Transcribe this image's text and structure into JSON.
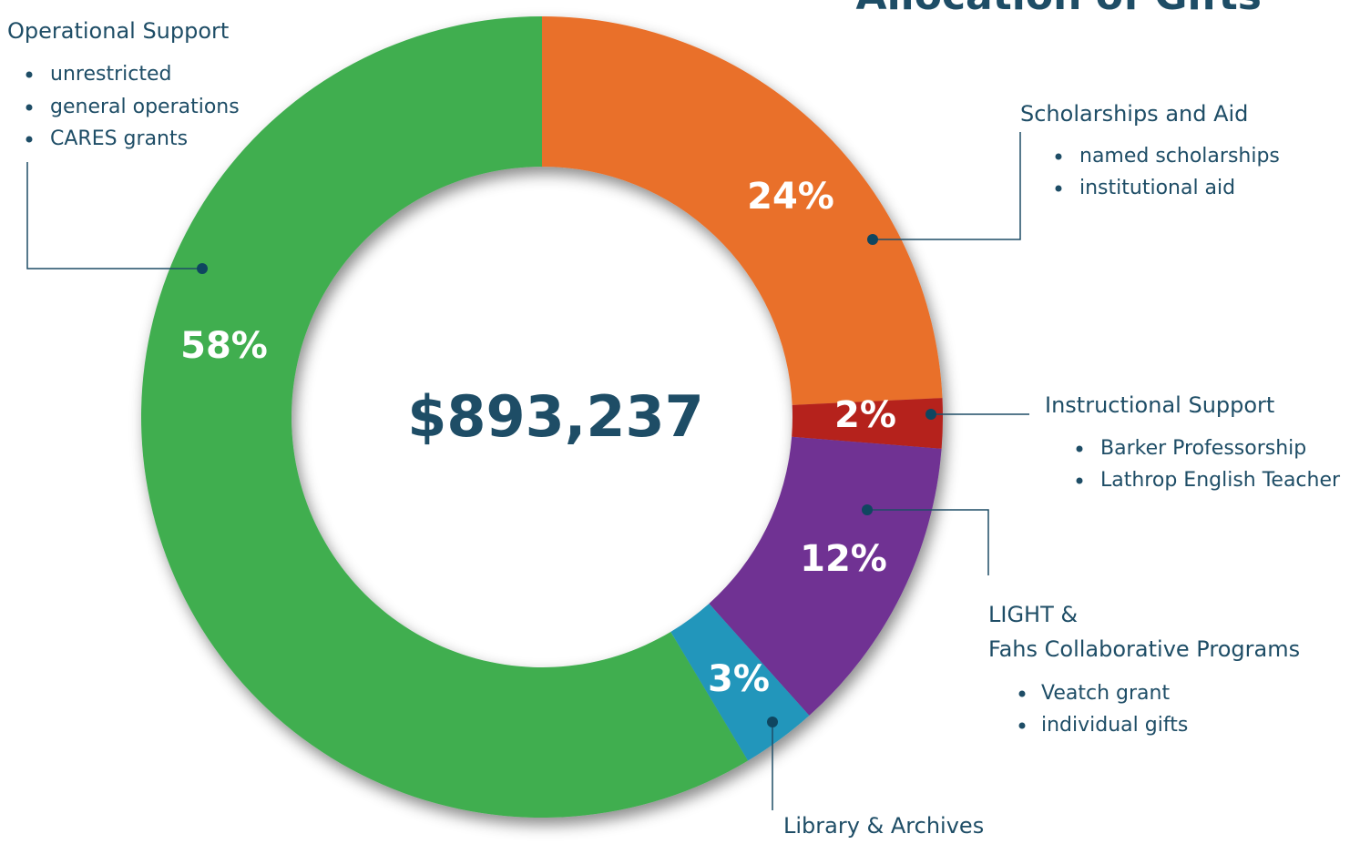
{
  "chart_data": {
    "type": "donut",
    "title": "Allocation of Gifts",
    "total_label": "$893,237",
    "categories": [
      {
        "label_lines": [
          "Scholarships and Aid"
        ],
        "bullets": [
          "named scholarships",
          "institutional aid"
        ]
      },
      {
        "label_lines": [
          "Instructional Support"
        ],
        "bullets": [
          "Barker Professorship",
          "Lathrop English Teacher"
        ]
      },
      {
        "label_lines": [
          "LIGHT &",
          "Fahs Collaborative Programs"
        ],
        "bullets": [
          "Veatch grant",
          "individual gifts"
        ]
      },
      {
        "label_lines": [
          "Library & Archives"
        ],
        "bullets": []
      },
      {
        "label_lines": [
          "Operational Support"
        ],
        "bullets": [
          "unrestricted",
          "general operations",
          "CARES grants"
        ]
      }
    ],
    "values": [
      24,
      2,
      12,
      3,
      58
    ],
    "value_labels": [
      "24%",
      "2%",
      "12%",
      "3%",
      "58%"
    ],
    "colors": [
      "#e9702a",
      "#b5201c",
      "#6f3193",
      "#2196bb",
      "#3fae4f"
    ]
  }
}
